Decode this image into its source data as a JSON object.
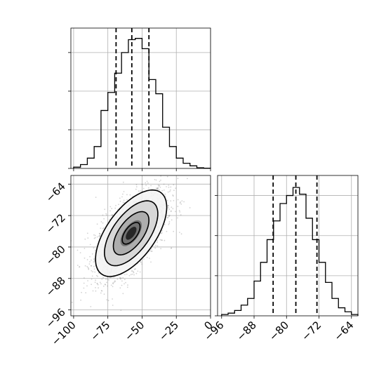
{
  "chart_data": [
    {
      "type": "histogram",
      "panel": "top-left",
      "bin_edges": [
        -100,
        -95,
        -90,
        -85,
        -80,
        -75,
        -70,
        -65,
        -60,
        -55,
        -50,
        -45,
        -40,
        -35,
        -30,
        -25,
        -20,
        -15,
        -10,
        -5,
        0
      ],
      "counts": [
        0.01,
        0.03,
        0.08,
        0.17,
        0.45,
        0.59,
        0.74,
        0.9,
        1.0,
        1.01,
        0.93,
        0.69,
        0.58,
        0.32,
        0.17,
        0.08,
        0.04,
        0.02,
        0.005,
        0.002
      ],
      "quantiles": [
        -69,
        -57.5,
        -45
      ],
      "xlim": [
        -102,
        0
      ],
      "ylim": [
        0,
        1.09
      ],
      "grid": true
    },
    {
      "type": "histogram",
      "panel": "bottom-right",
      "bin_edges": [
        -96,
        -94.4,
        -92.8,
        -91.2,
        -89.6,
        -88,
        -86.4,
        -84.8,
        -83.2,
        -81.6,
        -80,
        -78.4,
        -76.8,
        -75.2,
        -73.6,
        -72,
        -70.4,
        -68.8,
        -67.2,
        -65.6,
        -64,
        -62.4
      ],
      "counts": [
        0.01,
        0.02,
        0.04,
        0.08,
        0.13,
        0.26,
        0.4,
        0.57,
        0.71,
        0.84,
        0.9,
        0.96,
        0.91,
        0.73,
        0.57,
        0.4,
        0.25,
        0.13,
        0.06,
        0.03,
        0.01
      ],
      "quantiles": [
        -83.3,
        -77.7,
        -72.5
      ],
      "xlim": [
        -97,
        -62.4
      ],
      "ylim": [
        0,
        1.05
      ],
      "xticks": [
        "−96",
        "−88",
        "−80",
        "−72",
        "−64"
      ],
      "xtick_values": [
        -96,
        -88,
        -80,
        -72,
        -64
      ],
      "grid": true
    },
    {
      "type": "scatter",
      "panel": "bottom-left",
      "center": [
        -58,
        -76.5
      ],
      "std": [
        13,
        5.5
      ],
      "correlation": 0.6,
      "n_points": 2200,
      "xlim": [
        -102,
        0
      ],
      "ylim": [
        -97.5,
        -61.8
      ],
      "xticks": [
        "−100",
        "−75",
        "−50",
        "−25",
        "0"
      ],
      "xtick_values": [
        -100,
        -75,
        -50,
        -25,
        0
      ],
      "yticks": [
        "−64",
        "−72",
        "−80",
        "−88",
        "−96"
      ],
      "ytick_values": [
        -64,
        -72,
        -80,
        -88,
        -96
      ],
      "contour_levels_sigma": [
        0.5,
        1.0,
        1.5,
        2.0
      ],
      "grid": true
    }
  ],
  "colors": {
    "ink": "#000000",
    "grid": "#b0b0b0",
    "points": "#808080"
  }
}
